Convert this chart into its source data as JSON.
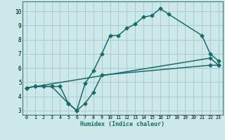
{
  "xlabel": "Humidex (Indice chaleur)",
  "xlim": [
    -0.5,
    23.5
  ],
  "ylim": [
    2.7,
    10.7
  ],
  "xticks": [
    0,
    1,
    2,
    3,
    4,
    5,
    6,
    7,
    8,
    9,
    10,
    11,
    12,
    13,
    14,
    15,
    16,
    17,
    18,
    19,
    20,
    21,
    22,
    23
  ],
  "yticks": [
    3,
    4,
    5,
    6,
    7,
    8,
    9,
    10
  ],
  "background_color": "#cce8e8",
  "grid_color": "#aacccc",
  "line_color": "#1a6b6b",
  "line1_x": [
    0,
    1,
    2,
    3,
    4,
    5,
    6,
    7,
    8,
    9,
    10,
    11,
    12,
    13,
    14,
    15,
    16,
    17,
    21,
    22,
    23
  ],
  "line1_y": [
    4.6,
    4.7,
    4.7,
    4.7,
    4.7,
    3.5,
    3.0,
    4.9,
    5.8,
    7.0,
    8.3,
    8.3,
    8.8,
    9.1,
    9.6,
    9.7,
    10.2,
    9.8,
    8.3,
    7.0,
    6.5
  ],
  "line2_x": [
    0,
    1,
    2,
    3,
    5,
    6,
    7,
    8,
    9,
    22,
    23
  ],
  "line2_y": [
    4.6,
    4.7,
    4.7,
    4.7,
    3.5,
    3.0,
    3.5,
    4.3,
    5.5,
    6.2,
    6.2
  ],
  "line3_x": [
    0,
    22,
    23
  ],
  "line3_y": [
    4.6,
    6.7,
    6.2
  ],
  "markersize": 2.5,
  "linewidth": 1.1
}
